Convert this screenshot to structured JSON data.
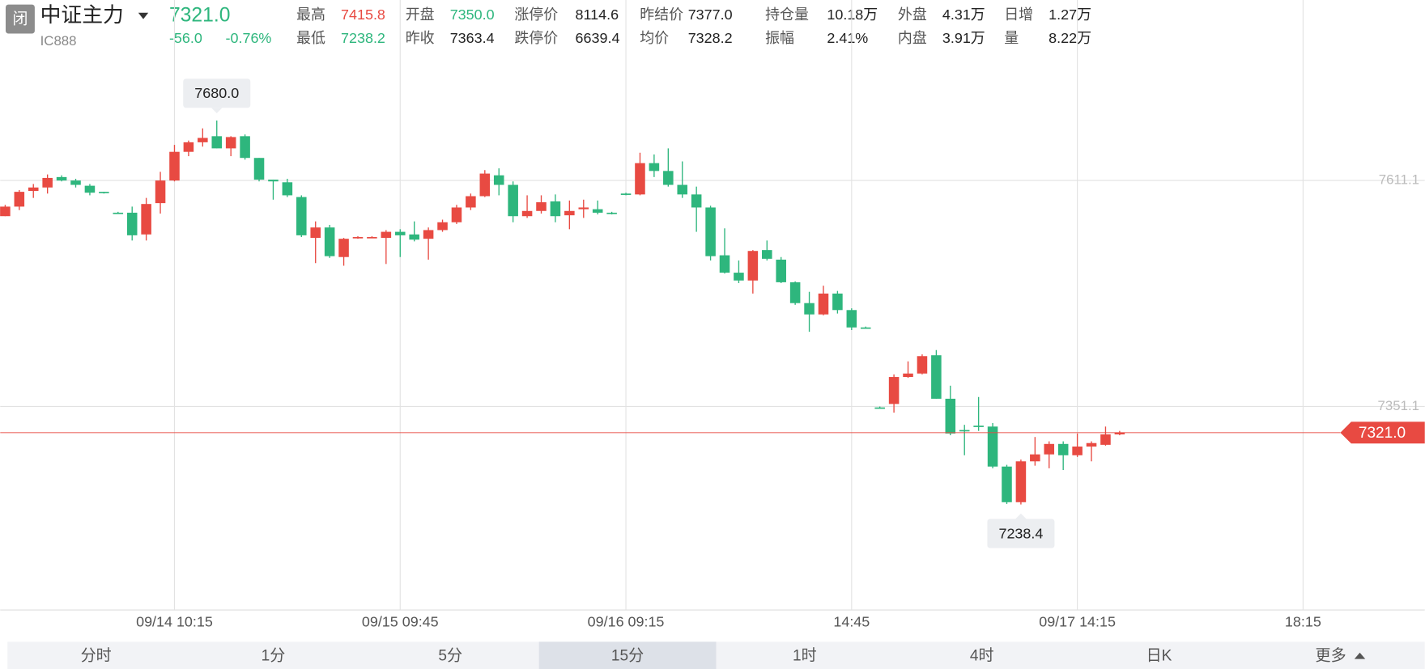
{
  "header": {
    "status": "闭",
    "name": "中证主力",
    "code": "IC888",
    "price": "7321.0",
    "change": "-56.0",
    "change_pct": "-0.76%",
    "price_color": "#2eb67d",
    "stats": [
      [
        {
          "label": "最高",
          "value": "7415.8",
          "color": "#e84a42"
        },
        {
          "label": "开盘",
          "value": "7350.0",
          "color": "#2eb67d"
        },
        {
          "label": "涨停价",
          "value": "8114.6"
        },
        {
          "label": "昨结价",
          "value": "7377.0"
        },
        {
          "label": "持仓量",
          "value": "10.18万"
        },
        {
          "label": "外盘",
          "value": "4.31万"
        },
        {
          "label": "日增",
          "value": "1.27万"
        }
      ],
      [
        {
          "label": "最低",
          "value": "7238.2",
          "color": "#2eb67d"
        },
        {
          "label": "昨收",
          "value": "7363.4"
        },
        {
          "label": "跌停价",
          "value": "6639.4"
        },
        {
          "label": "均价",
          "value": "7328.2"
        },
        {
          "label": "振幅",
          "value": "2.41%"
        },
        {
          "label": "内盘",
          "value": "3.91万"
        },
        {
          "label": "量",
          "value": "8.22万"
        }
      ]
    ]
  },
  "chart_data": {
    "type": "candlestick",
    "color_up": "#e84a42",
    "color_down": "#2eb67d",
    "grid": true,
    "ylim": [
      7117,
      7756
    ],
    "yticks": [
      7351.1,
      7611.1
    ],
    "categories": [
      null,
      null,
      null,
      null,
      null,
      null,
      null,
      null,
      null,
      null,
      null,
      null,
      "09/14 10:15",
      null,
      null,
      null,
      null,
      null,
      null,
      null,
      null,
      null,
      null,
      null,
      null,
      null,
      null,
      null,
      "09/15 09:45",
      null,
      null,
      null,
      null,
      null,
      null,
      null,
      null,
      null,
      null,
      null,
      null,
      null,
      null,
      null,
      "09/16 09:15",
      null,
      null,
      null,
      null,
      null,
      null,
      null,
      null,
      null,
      null,
      null,
      null,
      null,
      null,
      null,
      "14:45",
      null,
      null,
      null,
      null,
      null,
      null,
      null,
      null,
      null,
      null,
      null,
      null,
      null,
      null,
      null,
      "09/17 14:15",
      null,
      null,
      null,
      null,
      null,
      null,
      null,
      null,
      null,
      null,
      null,
      null,
      null,
      null,
      null,
      "18:15",
      null,
      null,
      null,
      null,
      null,
      null,
      null,
      null
    ],
    "open": [
      7570,
      7581,
      7599,
      7603,
      7615,
      7611,
      7605,
      7598,
      7574,
      7574,
      7549,
      7585,
      7611,
      7644,
      7655,
      7662,
      7648,
      7662,
      7637,
      7612,
      7609,
      7592,
      7545,
      7557,
      7523,
      7545,
      7545,
      7545,
      7552,
      7549,
      7544,
      7554,
      7563,
      7580,
      7593,
      7617,
      7606,
      7570,
      7576,
      7587,
      7571,
      7578,
      7578,
      7574,
      7596,
      7595,
      7631,
      7622,
      7606,
      7595,
      7580,
      7525,
      7505,
      7496,
      7531,
      7520,
      7494,
      7470,
      7457,
      7481,
      7462,
      7442,
      7350,
      7354,
      7385,
      7389,
      7410,
      7360,
      7324,
      7329,
      7328,
      7282,
      7241,
      7288,
      7296,
      7308,
      7295,
      7305,
      7307,
      7319,
      null,
      null,
      null,
      null,
      null,
      null,
      null,
      null,
      null,
      null,
      null,
      null,
      null,
      null,
      null,
      null,
      null,
      null,
      null,
      null,
      null
    ],
    "high": [
      7583,
      7600,
      7607,
      7618,
      7617,
      7613,
      7607,
      7598,
      7575,
      7581,
      7591,
      7621,
      7652,
      7657,
      7671,
      7680,
      7662,
      7664,
      7637,
      7612,
      7613,
      7594,
      7564,
      7560,
      7545,
      7547,
      7547,
      7554,
      7555,
      7564,
      7557,
      7566,
      7583,
      7596,
      7623,
      7625,
      7610,
      7594,
      7594,
      7595,
      7588,
      7589,
      7588,
      7575,
      7597,
      7643,
      7641,
      7648,
      7633,
      7604,
      7582,
      7556,
      7519,
      7531,
      7542,
      7523,
      7495,
      7483,
      7490,
      7484,
      7464,
      7443,
      7351,
      7388,
      7403,
      7411,
      7416,
      7375,
      7330,
      7362,
      7332,
      7284,
      7290,
      7316,
      7311,
      7311,
      7320,
      7311,
      7328,
      7323,
      null,
      null,
      null,
      null,
      null,
      null,
      null,
      null,
      null,
      null,
      null,
      null,
      null,
      null,
      null,
      null,
      null,
      null,
      null,
      null,
      null
    ],
    "low": [
      7570,
      7577,
      7591,
      7596,
      7610,
      7603,
      7594,
      7596,
      7573,
      7542,
      7542,
      7573,
      7610,
      7639,
      7650,
      7648,
      7639,
      7635,
      7610,
      7589,
      7592,
      7546,
      7516,
      7522,
      7513,
      7544,
      7545,
      7515,
      7523,
      7541,
      7520,
      7552,
      7561,
      7577,
      7592,
      7594,
      7563,
      7568,
      7573,
      7563,
      7555,
      7568,
      7572,
      7572,
      7594,
      7594,
      7615,
      7604,
      7591,
      7552,
      7519,
      7504,
      7493,
      7481,
      7519,
      7493,
      7468,
      7437,
      7456,
      7458,
      7439,
      7441,
      7349,
      7344,
      7384,
      7388,
      7360,
      7318,
      7295,
      7323,
      7280,
      7239,
      7238.4,
      7283,
      7280,
      7278,
      7293,
      7288,
      7306,
      7318,
      null,
      null,
      null,
      null,
      null,
      null,
      null,
      null,
      null,
      null,
      null,
      null,
      null,
      null,
      null,
      null,
      null,
      null,
      null,
      null,
      null
    ],
    "close": [
      7581,
      7598,
      7603,
      7614,
      7611,
      7606,
      7597,
      7597,
      7573,
      7548,
      7584,
      7611,
      7644,
      7655,
      7660,
      7648,
      7661,
      7637,
      7612,
      7610,
      7594,
      7548,
      7557,
      7524,
      7544,
      7546,
      7546,
      7552,
      7548,
      7543,
      7554,
      7563,
      7580,
      7593,
      7619,
      7606,
      7570,
      7576,
      7586,
      7570,
      7576,
      7580,
      7574,
      7573,
      7595,
      7631,
      7622,
      7606,
      7595,
      7580,
      7524,
      7505,
      7496,
      7530,
      7521,
      7494,
      7470,
      7457,
      7481,
      7462,
      7442,
      7441,
      7349,
      7385,
      7389,
      7409,
      7360,
      7320,
      7323,
      7328,
      7282,
      7241,
      7288,
      7296,
      7308,
      7295,
      7305,
      7309,
      7319,
      7321,
      null,
      null,
      null,
      null,
      null,
      null,
      null,
      null,
      null,
      null,
      null,
      null,
      null,
      null,
      null,
      null,
      null,
      null,
      null,
      null,
      null
    ],
    "annotations": [
      {
        "label": "7680.0",
        "value": 7680,
        "at": "high"
      },
      {
        "label": "7238.4",
        "value": 7238.4,
        "at": "low"
      }
    ],
    "last_price": {
      "value": 7321.0,
      "label": "7321.0"
    }
  },
  "tabs": {
    "items": [
      "分时",
      "1分",
      "5分",
      "15分",
      "1时",
      "4时",
      "日K",
      "更多"
    ],
    "selected": 3
  }
}
